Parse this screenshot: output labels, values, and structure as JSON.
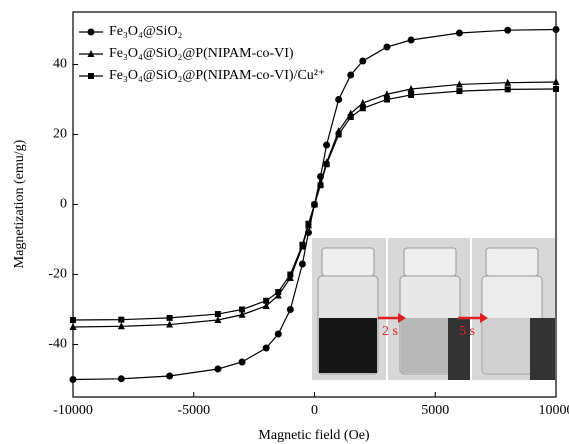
{
  "chart_data": {
    "type": "line",
    "xlabel": "Magnetic field (Oe)",
    "ylabel": "Magnetization (emu/g)",
    "x": [
      -10000,
      -8000,
      -6000,
      -4000,
      -3000,
      -2000,
      -1500,
      -1000,
      -500,
      -250,
      0,
      250,
      500,
      1000,
      1500,
      2000,
      3000,
      4000,
      6000,
      8000,
      10000
    ],
    "series": [
      {
        "name": "Fe₃O₄@SiO₂",
        "color": "#000000",
        "marker": "circle",
        "values": [
          -50,
          -49.8,
          -49,
          -47,
          -45,
          -41,
          -37,
          -30,
          -17,
          -8,
          0,
          8,
          17,
          30,
          37,
          41,
          45,
          47,
          49,
          49.8,
          50
        ]
      },
      {
        "name": "Fe₃O₄@SiO₂@P(NIPAM-co-VI)",
        "color": "#000000",
        "marker": "triangle",
        "values": [
          -35,
          -34.8,
          -34.3,
          -33,
          -31.5,
          -29,
          -26,
          -21,
          -12,
          -6,
          0,
          6,
          12,
          21,
          26,
          29,
          31.5,
          33,
          34.3,
          34.8,
          35
        ]
      },
      {
        "name": "Fe₃O₄@SiO₂@P(NIPAM-co-VI)/Cu²⁺",
        "color": "#000000",
        "marker": "square",
        "values": [
          -33,
          -32.9,
          -32.4,
          -31.3,
          -30,
          -27.5,
          -25,
          -20,
          -11.5,
          -5.5,
          0,
          5.5,
          11.5,
          20,
          25,
          27.5,
          30,
          31.3,
          32.4,
          32.9,
          33
        ]
      }
    ],
    "xlim": [
      -10000,
      10000
    ],
    "xticks": [
      -10000,
      -5000,
      0,
      5000,
      10000
    ],
    "ylim": [
      -55,
      55
    ],
    "yticks": [
      -40,
      -20,
      0,
      20,
      40
    ],
    "grid": false,
    "legend": "upper-left",
    "annotations": [
      "2 s",
      "5 s"
    ]
  }
}
